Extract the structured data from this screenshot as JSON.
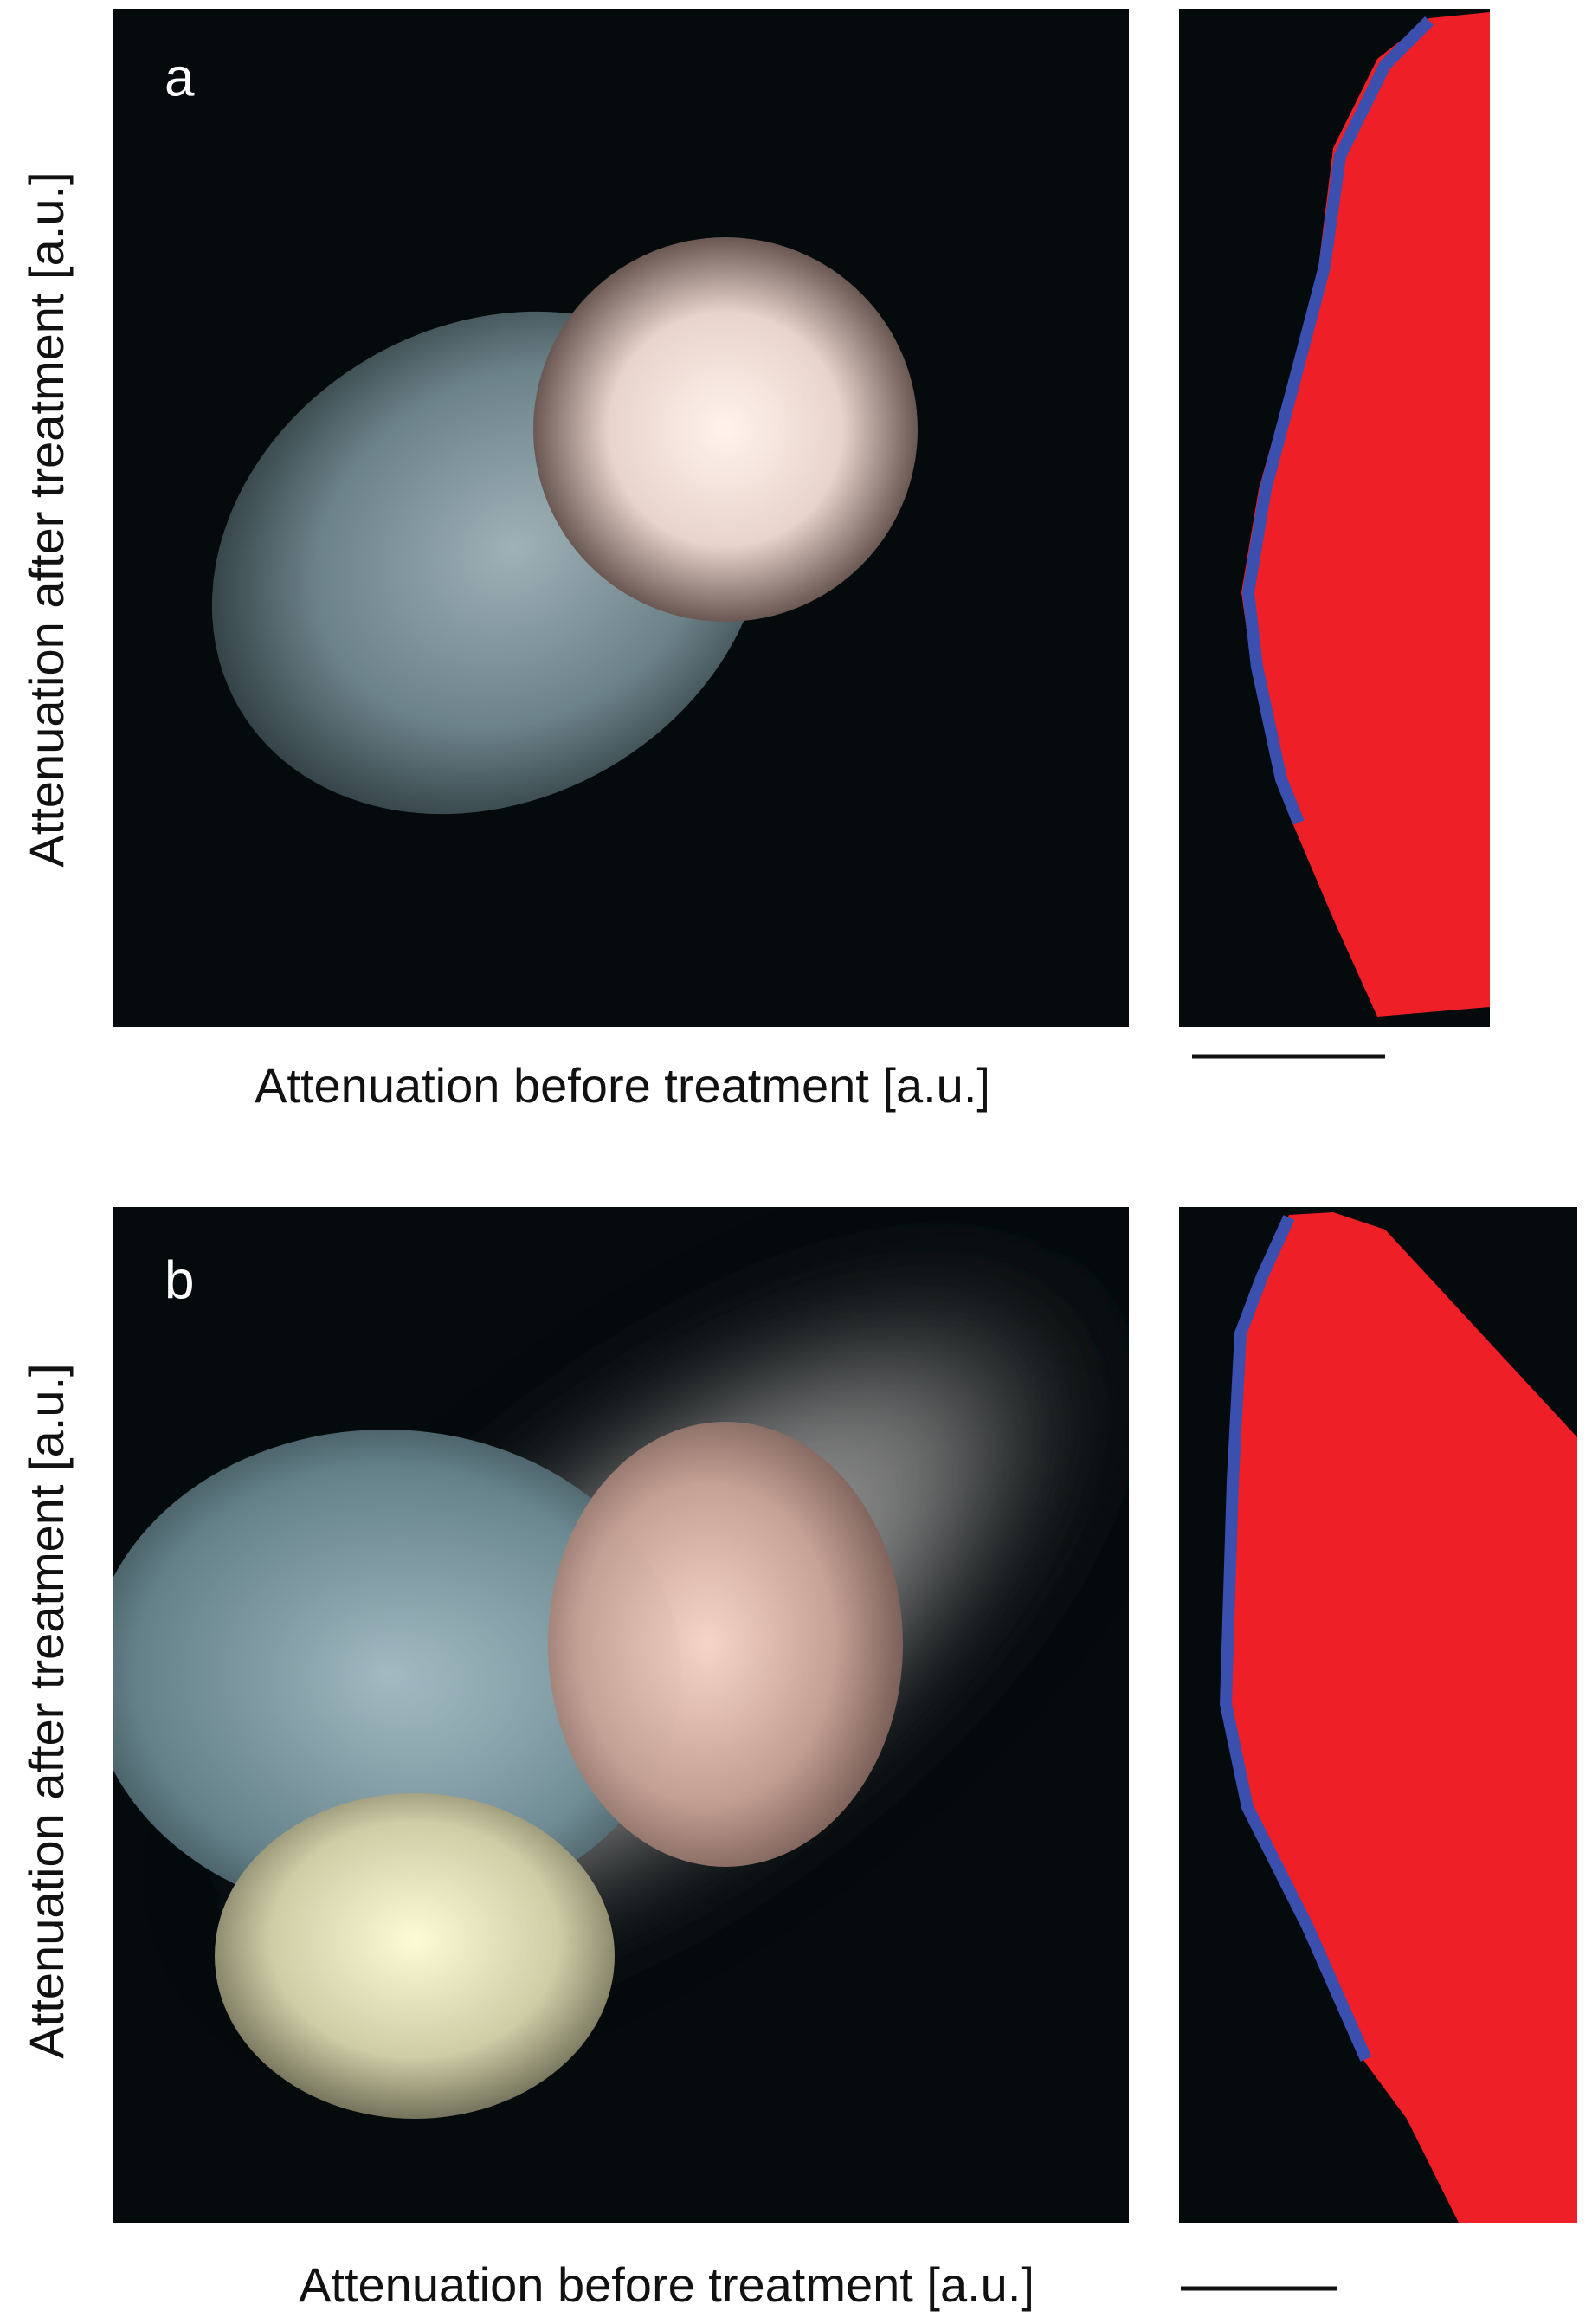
{
  "panels": [
    {
      "label": "a",
      "y_label": "Attenuation after treatment  [a.u.]",
      "x_label": "Attenuation before treatment [a.u.]"
    },
    {
      "label": "b",
      "y_label": "Attenuation after treatment  [a.u.]",
      "x_label": "Attenuation before treatment [a.u.]"
    }
  ]
}
